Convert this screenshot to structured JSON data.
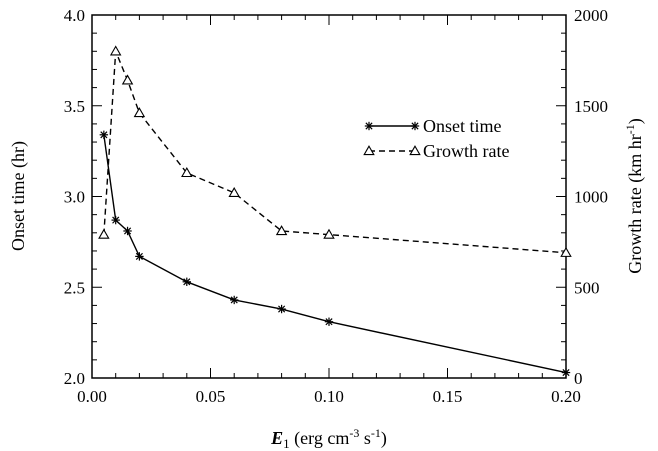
{
  "chart_data": {
    "type": "line",
    "xlabel": {
      "symbol": "E",
      "subscript": "1",
      "unit_open": " (erg cm",
      "exp1": "-3",
      "unit_mid": " s",
      "exp2": "-1",
      "unit_close": ")"
    },
    "ylabel_left": "Onset time (hr)",
    "ylabel_right": {
      "text": "Growth rate (km hr",
      "exp": "-1",
      "close": ")"
    },
    "xlim": [
      0.0,
      0.2
    ],
    "ylim_left": [
      2.0,
      4.0
    ],
    "ylim_right": [
      0,
      2000
    ],
    "xticks": [
      0.0,
      0.05,
      0.1,
      0.15,
      0.2
    ],
    "xtick_labels": [
      "0.00",
      "0.05",
      "0.10",
      "0.15",
      "0.20"
    ],
    "yticks_left": [
      2.0,
      2.5,
      3.0,
      3.5,
      4.0
    ],
    "ytick_labels_left": [
      "2.0",
      "2.5",
      "3.0",
      "3.5",
      "4.0"
    ],
    "yticks_right": [
      0,
      500,
      1000,
      1500,
      2000
    ],
    "ytick_labels_right": [
      "0",
      "500",
      "1000",
      "1500",
      "2000"
    ],
    "legend_position": "upper-right",
    "grid": false,
    "series": [
      {
        "name": "Onset time",
        "axis": "left",
        "line": "solid",
        "marker": "asterisk",
        "x": [
          0.005,
          0.01,
          0.015,
          0.02,
          0.04,
          0.06,
          0.08,
          0.1,
          0.2
        ],
        "y": [
          3.34,
          2.87,
          2.81,
          2.67,
          2.53,
          2.43,
          2.38,
          2.31,
          2.03
        ]
      },
      {
        "name": "Growth rate",
        "axis": "right",
        "line": "dashed",
        "marker": "triangle",
        "x": [
          0.005,
          0.01,
          0.015,
          0.02,
          0.04,
          0.06,
          0.08,
          0.1,
          0.2
        ],
        "y": [
          790,
          1800,
          1640,
          1460,
          1130,
          1020,
          810,
          790,
          690
        ]
      }
    ]
  }
}
